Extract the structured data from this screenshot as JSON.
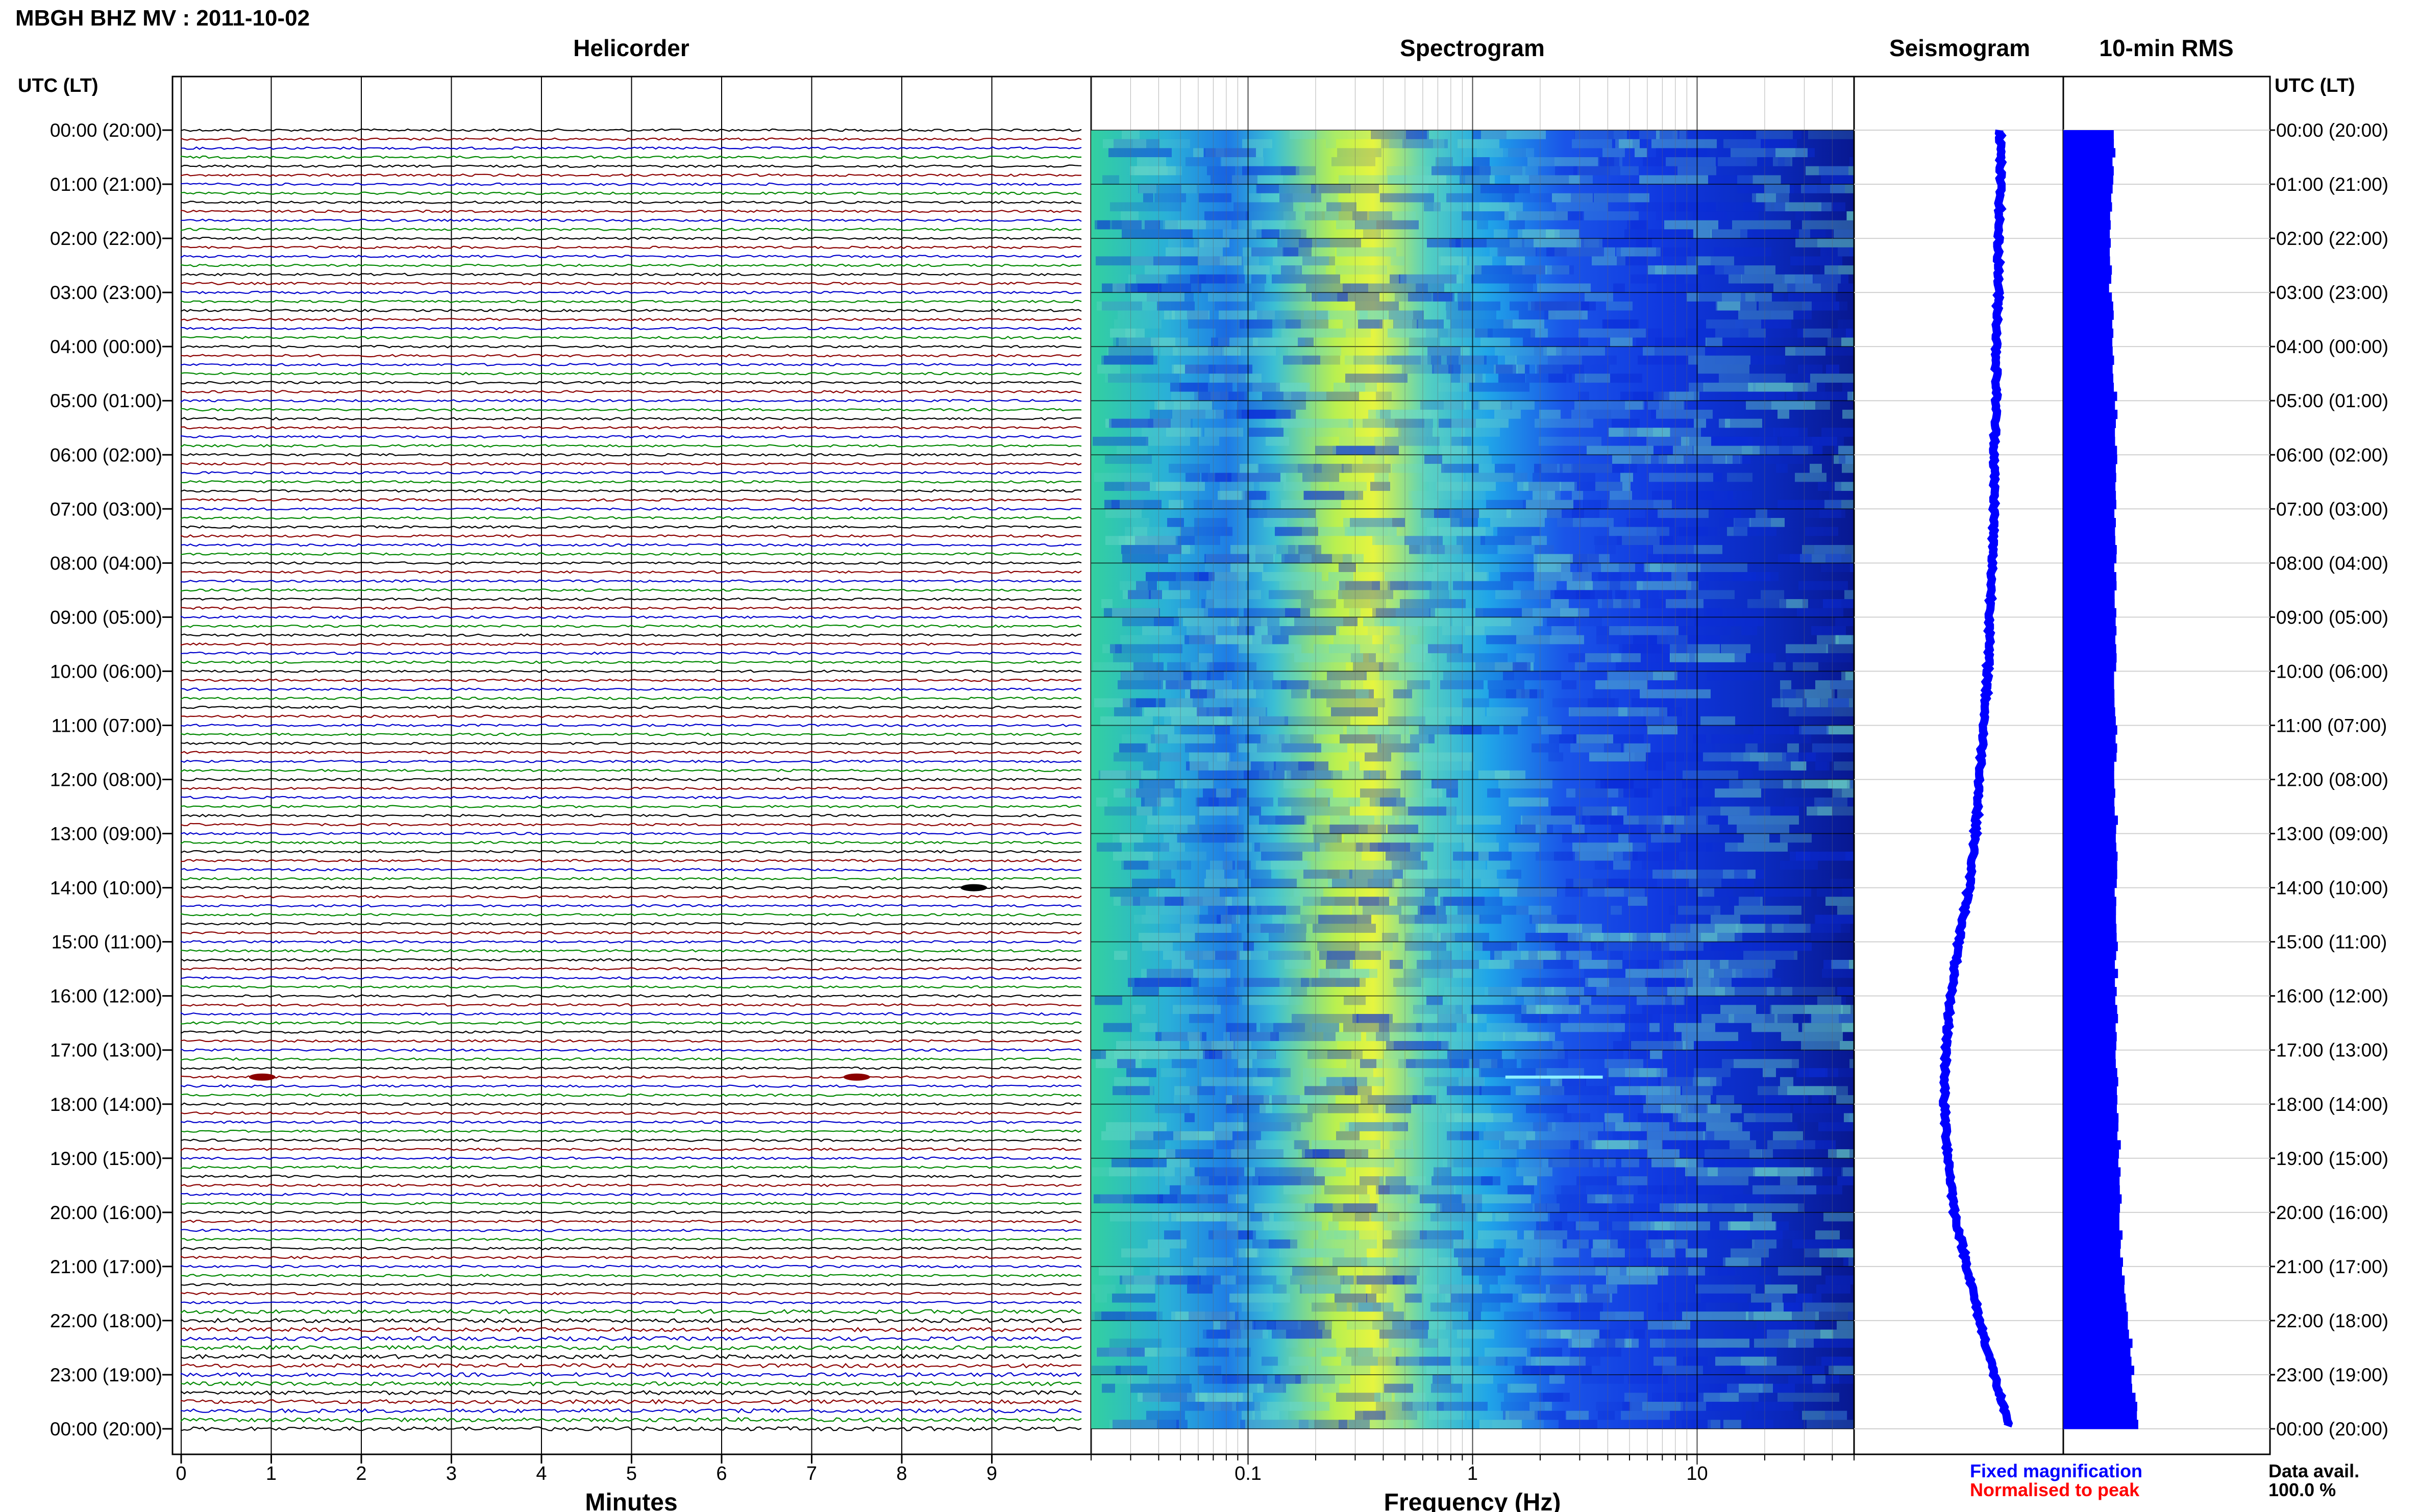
{
  "title": "MBGH BHZ MV : 2011-10-02",
  "panels": {
    "helicorder": "Helicorder",
    "spectrogram": "Spectrogram",
    "seismogram": "Seismogram",
    "rms": "10-min RMS"
  },
  "time_axis_label": "UTC (LT)",
  "time_ticks": [
    "00:00 (20:00)",
    "01:00 (21:00)",
    "02:00 (22:00)",
    "03:00 (23:00)",
    "04:00 (00:00)",
    "05:00 (01:00)",
    "06:00 (02:00)",
    "07:00 (03:00)",
    "08:00 (04:00)",
    "09:00 (05:00)",
    "10:00 (06:00)",
    "11:00 (07:00)",
    "12:00 (08:00)",
    "13:00 (09:00)",
    "14:00 (10:00)",
    "15:00 (11:00)",
    "16:00 (12:00)",
    "17:00 (13:00)",
    "18:00 (14:00)",
    "19:00 (15:00)",
    "20:00 (16:00)",
    "21:00 (17:00)",
    "22:00 (18:00)",
    "23:00 (19:00)",
    "00:00 (20:00)"
  ],
  "helicorder_xaxis": {
    "label": "Minutes",
    "ticks": [
      0,
      1,
      2,
      3,
      4,
      5,
      6,
      7,
      8,
      9
    ],
    "range": [
      0,
      10
    ]
  },
  "spectrogram_xaxis": {
    "label": "Frequency (Hz)",
    "ticks": [
      0.1,
      1,
      10
    ],
    "tick_labels": [
      "0.1",
      "1",
      "10"
    ],
    "scale": "log",
    "range": [
      0.02,
      50
    ]
  },
  "legend": {
    "fixed": "Fixed magnification",
    "normalised": "Normalised to peak",
    "fixed_color": "#0000ff",
    "normalised_color": "#ff0000"
  },
  "data_avail": {
    "label": "Data avail.",
    "value": "100.0 %"
  },
  "colors": {
    "trace_cycle": [
      "#000000",
      "#8b0000",
      "#0000cc",
      "#008800"
    ],
    "spec_low": "#0000ff",
    "spec_high": "#ffff00",
    "bar": "#0000ff"
  },
  "chart_data": {
    "type": "heatmap",
    "rows_per_hour": 6,
    "hours": 24,
    "events": [
      {
        "time_hours": 14.0,
        "minute": 8.8,
        "color": "#000000"
      },
      {
        "time_hours": 17.5,
        "minute": 0.9,
        "color": "#8b0000"
      },
      {
        "time_hours": 17.5,
        "minute": 7.5,
        "color": "#8b0000"
      }
    ],
    "spectral_line": {
      "time_hours": 17.5,
      "freq_range_hz": [
        1.4,
        3.8
      ]
    },
    "seismogram_offset": [
      0.7,
      0.7,
      0.69,
      0.69,
      0.68,
      0.68,
      0.67,
      0.67,
      0.66,
      0.65,
      0.64,
      0.62,
      0.6,
      0.58,
      0.55,
      0.5,
      0.46,
      0.44,
      0.43,
      0.45,
      0.48,
      0.54,
      0.6,
      0.67,
      0.74
    ],
    "rms_values": [
      0.56,
      0.54,
      0.5,
      0.52,
      0.55,
      0.57,
      0.58,
      0.57,
      0.56,
      0.57,
      0.56,
      0.57,
      0.57,
      0.58,
      0.57,
      0.58,
      0.58,
      0.58,
      0.6,
      0.61,
      0.62,
      0.65,
      0.72,
      0.76,
      0.82
    ]
  }
}
